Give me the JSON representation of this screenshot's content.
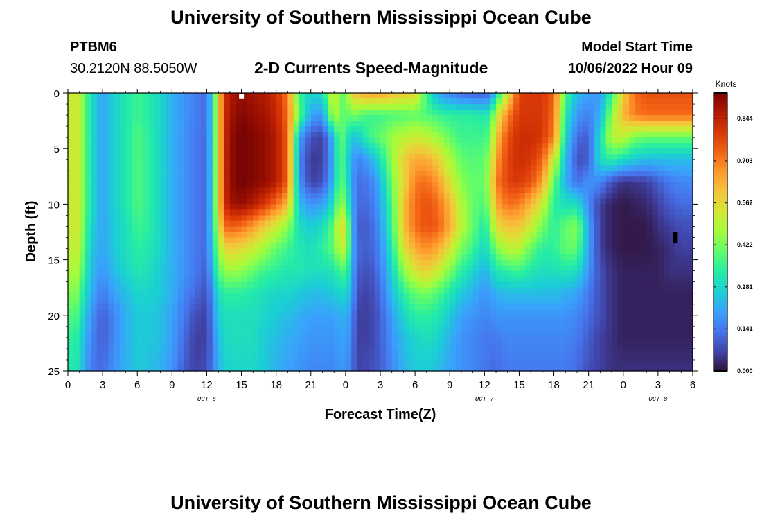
{
  "header": {
    "title": "University of Southern Mississippi Ocean Cube",
    "station": "PTBM6",
    "coords": "30.2120N  88.5050W",
    "subtitle": "2-D Currents Speed-Magnitude",
    "model_label": "Model Start Time",
    "model_time": "10/06/2022 Hour 09"
  },
  "footer": {
    "title": "University of Southern Mississippi Ocean Cube"
  },
  "chart_data": {
    "type": "heatmap",
    "title": "2-D Currents Speed-Magnitude",
    "xlabel": "Forecast Time(Z)",
    "ylabel": "Depth (ft)",
    "x_hours_range": [
      0,
      54
    ],
    "y_range": [
      0,
      25
    ],
    "y_inverted": true,
    "x_tick_labels": [
      "0",
      "3",
      "6",
      "9",
      "12",
      "15",
      "18",
      "21",
      "0",
      "3",
      "6",
      "9",
      "12",
      "15",
      "18",
      "21",
      "0",
      "3",
      "6"
    ],
    "y_tick_labels": [
      "0",
      "5",
      "10",
      "15",
      "20",
      "25"
    ],
    "y_tick_values": [
      0,
      5,
      10,
      15,
      20,
      25
    ],
    "day_labels": [
      {
        "text": "OCT 6",
        "hour": 12
      },
      {
        "text": "OCT 7",
        "hour": 36
      },
      {
        "text": "OCT 8",
        "hour": 51
      }
    ],
    "colorbar": {
      "unit": "Knots",
      "tick_labels": [
        "0.844",
        "0.703",
        "0.562",
        "0.422",
        "0.281",
        "0.141",
        "0.000"
      ],
      "tick_values": [
        0.844,
        0.703,
        0.562,
        0.422,
        0.281,
        0.141,
        0.0
      ],
      "min": 0.0,
      "max": 0.93,
      "colors": [
        "#30123b",
        "#4145ab",
        "#4675ed",
        "#39a2fc",
        "#1bcfd4",
        "#24eca6",
        "#61fc6c",
        "#a4fc3b",
        "#d1e834",
        "#f3c63a",
        "#fe9b2d",
        "#f36315",
        "#d93806",
        "#b11901",
        "#7a0403"
      ]
    },
    "markers": [
      {
        "label": "white marker",
        "hour": 15,
        "depth": 0.3,
        "color": "#ffffff"
      },
      {
        "label": "black marker",
        "hour": 52.5,
        "depth": 13.0,
        "color": "#000000"
      }
    ],
    "profile": {
      "columns_hours": [
        0,
        0.5,
        1,
        2,
        3,
        4,
        5,
        6,
        7,
        8,
        9,
        10,
        11,
        12,
        12.5,
        13,
        13.5,
        14,
        15,
        16,
        17,
        18,
        19,
        20,
        21,
        22,
        23,
        23.5,
        24,
        24.5,
        25,
        26,
        27,
        28,
        29,
        30,
        31,
        32,
        33,
        34,
        35,
        36,
        36.5,
        37,
        38,
        39,
        40,
        41,
        42,
        43,
        44,
        45,
        46,
        47,
        48,
        49,
        50,
        51,
        52,
        53,
        54
      ],
      "rows_depth_ft": [
        0,
        2,
        4,
        6,
        8,
        10,
        12,
        14,
        16,
        18,
        20,
        22,
        25
      ],
      "note": "speed in knots sampled from image at each (depth,hour)",
      "values": [
        [
          0.47,
          0.56,
          0.5,
          0.3,
          0.2,
          0.27,
          0.32,
          0.36,
          0.33,
          0.28,
          0.22,
          0.18,
          0.15,
          0.12,
          0.3,
          0.55,
          0.8,
          0.86,
          0.9,
          0.88,
          0.86,
          0.82,
          0.7,
          0.35,
          0.28,
          0.3,
          0.55,
          0.42,
          0.4,
          0.58,
          0.62,
          0.66,
          0.66,
          0.62,
          0.6,
          0.58,
          0.35,
          0.2,
          0.15,
          0.12,
          0.1,
          0.1,
          0.12,
          0.28,
          0.52,
          0.78,
          0.8,
          0.8,
          0.74,
          0.38,
          0.24,
          0.2,
          0.18,
          0.35,
          0.58,
          0.72,
          0.76,
          0.76,
          0.76,
          0.76,
          0.76
        ],
        [
          0.47,
          0.56,
          0.5,
          0.3,
          0.2,
          0.27,
          0.32,
          0.36,
          0.33,
          0.28,
          0.22,
          0.18,
          0.15,
          0.12,
          0.3,
          0.55,
          0.8,
          0.88,
          0.92,
          0.9,
          0.88,
          0.84,
          0.72,
          0.4,
          0.2,
          0.18,
          0.5,
          0.42,
          0.38,
          0.42,
          0.4,
          0.36,
          0.36,
          0.38,
          0.38,
          0.4,
          0.38,
          0.36,
          0.34,
          0.34,
          0.34,
          0.32,
          0.34,
          0.5,
          0.7,
          0.8,
          0.8,
          0.8,
          0.72,
          0.32,
          0.18,
          0.15,
          0.22,
          0.45,
          0.62,
          0.7,
          0.72,
          0.72,
          0.72,
          0.72,
          0.72
        ],
        [
          0.47,
          0.56,
          0.5,
          0.3,
          0.2,
          0.27,
          0.32,
          0.38,
          0.34,
          0.28,
          0.22,
          0.18,
          0.14,
          0.12,
          0.3,
          0.55,
          0.8,
          0.9,
          0.94,
          0.92,
          0.9,
          0.86,
          0.74,
          0.2,
          0.08,
          0.06,
          0.24,
          0.42,
          0.34,
          0.26,
          0.25,
          0.36,
          0.4,
          0.46,
          0.5,
          0.52,
          0.5,
          0.46,
          0.4,
          0.36,
          0.36,
          0.36,
          0.4,
          0.6,
          0.76,
          0.82,
          0.82,
          0.8,
          0.7,
          0.28,
          0.12,
          0.1,
          0.3,
          0.5,
          0.5,
          0.42,
          0.4,
          0.4,
          0.4,
          0.4,
          0.4
        ],
        [
          0.47,
          0.56,
          0.5,
          0.3,
          0.2,
          0.27,
          0.32,
          0.38,
          0.34,
          0.28,
          0.22,
          0.18,
          0.14,
          0.12,
          0.3,
          0.55,
          0.8,
          0.9,
          0.94,
          0.92,
          0.9,
          0.86,
          0.74,
          0.16,
          0.05,
          0.06,
          0.22,
          0.42,
          0.3,
          0.22,
          0.15,
          0.2,
          0.3,
          0.45,
          0.58,
          0.64,
          0.64,
          0.58,
          0.48,
          0.4,
          0.38,
          0.4,
          0.46,
          0.66,
          0.78,
          0.82,
          0.8,
          0.74,
          0.52,
          0.24,
          0.08,
          0.1,
          0.3,
          0.34,
          0.3,
          0.26,
          0.24,
          0.24,
          0.24,
          0.24,
          0.24
        ],
        [
          0.47,
          0.56,
          0.5,
          0.3,
          0.2,
          0.27,
          0.32,
          0.38,
          0.34,
          0.28,
          0.22,
          0.18,
          0.14,
          0.12,
          0.3,
          0.55,
          0.8,
          0.9,
          0.94,
          0.92,
          0.9,
          0.86,
          0.74,
          0.18,
          0.06,
          0.08,
          0.24,
          0.42,
          0.32,
          0.22,
          0.12,
          0.14,
          0.22,
          0.42,
          0.56,
          0.7,
          0.72,
          0.66,
          0.54,
          0.44,
          0.4,
          0.4,
          0.5,
          0.7,
          0.78,
          0.8,
          0.76,
          0.66,
          0.4,
          0.22,
          0.12,
          0.18,
          0.16,
          0.08,
          0.04,
          0.05,
          0.06,
          0.1,
          0.14,
          0.16,
          0.16
        ],
        [
          0.47,
          0.56,
          0.5,
          0.3,
          0.2,
          0.27,
          0.32,
          0.38,
          0.34,
          0.28,
          0.22,
          0.18,
          0.14,
          0.12,
          0.3,
          0.55,
          0.8,
          0.88,
          0.9,
          0.86,
          0.8,
          0.72,
          0.62,
          0.24,
          0.18,
          0.2,
          0.3,
          0.48,
          0.38,
          0.24,
          0.12,
          0.12,
          0.2,
          0.38,
          0.6,
          0.72,
          0.76,
          0.72,
          0.62,
          0.48,
          0.4,
          0.38,
          0.46,
          0.64,
          0.72,
          0.7,
          0.62,
          0.52,
          0.34,
          0.3,
          0.3,
          0.16,
          0.06,
          0.02,
          0.01,
          0.02,
          0.03,
          0.06,
          0.1,
          0.12,
          0.12
        ],
        [
          0.47,
          0.56,
          0.5,
          0.28,
          0.2,
          0.26,
          0.3,
          0.36,
          0.34,
          0.28,
          0.22,
          0.18,
          0.14,
          0.12,
          0.3,
          0.5,
          0.72,
          0.74,
          0.72,
          0.66,
          0.58,
          0.52,
          0.44,
          0.3,
          0.26,
          0.3,
          0.4,
          0.56,
          0.52,
          0.26,
          0.1,
          0.1,
          0.18,
          0.36,
          0.6,
          0.72,
          0.76,
          0.74,
          0.64,
          0.5,
          0.4,
          0.32,
          0.4,
          0.56,
          0.6,
          0.6,
          0.52,
          0.42,
          0.34,
          0.4,
          0.44,
          0.2,
          0.06,
          0.02,
          0.01,
          0.01,
          0.01,
          0.04,
          0.06,
          0.08,
          0.08
        ],
        [
          0.46,
          0.54,
          0.48,
          0.26,
          0.2,
          0.26,
          0.3,
          0.34,
          0.32,
          0.28,
          0.22,
          0.18,
          0.14,
          0.12,
          0.28,
          0.44,
          0.56,
          0.58,
          0.56,
          0.52,
          0.46,
          0.4,
          0.36,
          0.32,
          0.3,
          0.34,
          0.4,
          0.5,
          0.5,
          0.26,
          0.12,
          0.1,
          0.16,
          0.32,
          0.54,
          0.64,
          0.68,
          0.64,
          0.54,
          0.42,
          0.36,
          0.28,
          0.34,
          0.42,
          0.5,
          0.5,
          0.4,
          0.34,
          0.34,
          0.4,
          0.4,
          0.2,
          0.06,
          0.02,
          0.01,
          0.01,
          0.01,
          0.02,
          0.04,
          0.06,
          0.06
        ],
        [
          0.44,
          0.5,
          0.44,
          0.24,
          0.18,
          0.24,
          0.28,
          0.32,
          0.3,
          0.26,
          0.22,
          0.18,
          0.14,
          0.1,
          0.24,
          0.38,
          0.44,
          0.46,
          0.44,
          0.4,
          0.36,
          0.34,
          0.32,
          0.32,
          0.3,
          0.3,
          0.32,
          0.36,
          0.38,
          0.24,
          0.1,
          0.08,
          0.14,
          0.28,
          0.44,
          0.54,
          0.58,
          0.52,
          0.42,
          0.34,
          0.28,
          0.22,
          0.26,
          0.32,
          0.34,
          0.36,
          0.32,
          0.3,
          0.3,
          0.32,
          0.3,
          0.18,
          0.08,
          0.04,
          0.02,
          0.02,
          0.02,
          0.02,
          0.04,
          0.04,
          0.04
        ],
        [
          0.4,
          0.46,
          0.38,
          0.22,
          0.14,
          0.2,
          0.24,
          0.28,
          0.28,
          0.26,
          0.22,
          0.16,
          0.12,
          0.08,
          0.18,
          0.3,
          0.34,
          0.34,
          0.34,
          0.32,
          0.3,
          0.28,
          0.28,
          0.26,
          0.24,
          0.24,
          0.26,
          0.28,
          0.28,
          0.22,
          0.08,
          0.06,
          0.12,
          0.24,
          0.34,
          0.4,
          0.42,
          0.38,
          0.32,
          0.26,
          0.22,
          0.18,
          0.2,
          0.22,
          0.24,
          0.24,
          0.24,
          0.24,
          0.24,
          0.22,
          0.2,
          0.14,
          0.08,
          0.04,
          0.02,
          0.02,
          0.02,
          0.02,
          0.02,
          0.02,
          0.02
        ],
        [
          0.36,
          0.4,
          0.34,
          0.18,
          0.1,
          0.16,
          0.22,
          0.26,
          0.26,
          0.24,
          0.2,
          0.14,
          0.08,
          0.06,
          0.16,
          0.26,
          0.3,
          0.3,
          0.3,
          0.3,
          0.28,
          0.26,
          0.24,
          0.22,
          0.2,
          0.2,
          0.2,
          0.22,
          0.22,
          0.18,
          0.06,
          0.06,
          0.1,
          0.2,
          0.28,
          0.34,
          0.34,
          0.32,
          0.26,
          0.2,
          0.18,
          0.16,
          0.16,
          0.18,
          0.18,
          0.18,
          0.18,
          0.18,
          0.18,
          0.18,
          0.16,
          0.12,
          0.08,
          0.04,
          0.02,
          0.02,
          0.02,
          0.02,
          0.02,
          0.02,
          0.02
        ],
        [
          0.32,
          0.36,
          0.3,
          0.16,
          0.1,
          0.16,
          0.22,
          0.26,
          0.26,
          0.24,
          0.2,
          0.12,
          0.06,
          0.06,
          0.14,
          0.24,
          0.28,
          0.3,
          0.3,
          0.3,
          0.26,
          0.24,
          0.22,
          0.2,
          0.18,
          0.18,
          0.18,
          0.2,
          0.2,
          0.16,
          0.06,
          0.06,
          0.1,
          0.18,
          0.24,
          0.28,
          0.3,
          0.28,
          0.22,
          0.18,
          0.16,
          0.14,
          0.14,
          0.14,
          0.16,
          0.16,
          0.16,
          0.16,
          0.16,
          0.16,
          0.14,
          0.1,
          0.06,
          0.04,
          0.02,
          0.02,
          0.02,
          0.02,
          0.02,
          0.02,
          0.02
        ],
        [
          0.3,
          0.34,
          0.28,
          0.14,
          0.12,
          0.18,
          0.22,
          0.26,
          0.24,
          0.22,
          0.18,
          0.1,
          0.06,
          0.08,
          0.14,
          0.22,
          0.26,
          0.28,
          0.28,
          0.28,
          0.26,
          0.22,
          0.2,
          0.18,
          0.16,
          0.16,
          0.16,
          0.18,
          0.18,
          0.14,
          0.06,
          0.08,
          0.1,
          0.16,
          0.22,
          0.26,
          0.26,
          0.24,
          0.2,
          0.18,
          0.16,
          0.14,
          0.12,
          0.12,
          0.14,
          0.14,
          0.14,
          0.14,
          0.14,
          0.14,
          0.12,
          0.08,
          0.06,
          0.04,
          0.04,
          0.04,
          0.04,
          0.04,
          0.04,
          0.04,
          0.04
        ]
      ]
    }
  }
}
